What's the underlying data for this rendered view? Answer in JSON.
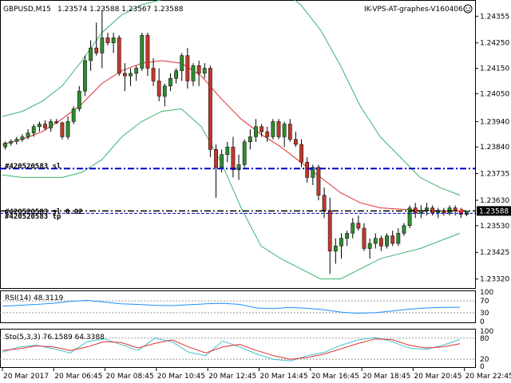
{
  "header": {
    "symbol": "GBPUSD,M15",
    "ohlc": "1.23574 1.23588 1.23567 1.23588",
    "expert": "IK-VPS-AT-graphes-V160406"
  },
  "price_axis": {
    "ticks": [
      "1.24355",
      "1.24250",
      "1.24150",
      "1.24050",
      "1.23940",
      "1.23840",
      "1.23735",
      "1.23630",
      "1.23530",
      "1.23425",
      "1.23320"
    ],
    "last_price": "1.23588"
  },
  "levels": {
    "blue_label": "#420520583 sl",
    "black_label": "#420520583 tp",
    "black_label_extra": "#420520583 sl 0.02"
  },
  "rsi": {
    "label": "RSI(14) 48.3119",
    "ticks": [
      "100",
      "70",
      "30",
      "0"
    ]
  },
  "sto": {
    "label": "Sto(5,3,3) 76.1589 64.3388",
    "ticks": [
      "100",
      "80",
      "20",
      "0"
    ]
  },
  "time_axis": [
    "20 Mar 2017",
    "20 Mar 06:45",
    "20 Mar 08:45",
    "20 Mar 10:45",
    "20 Mar 12:45",
    "20 Mar 14:45",
    "20 Mar 16:45",
    "20 Mar 18:45",
    "20 Mar 20:45",
    "20 Mar 22:45"
  ],
  "colors": {
    "bull": "#2e8b2e",
    "bear": "#c0392b",
    "band": "#3cb371",
    "ma": "#e03030",
    "blue_level": "#0000c8",
    "rsi_line": "#1e90ff",
    "sto_main": "#40c0d0",
    "sto_signal": "#e03030"
  },
  "chart_data": {
    "type": "candlestick",
    "candles": [
      [
        1.2384,
        1.23862,
        1.2383,
        1.23855
      ],
      [
        1.23855,
        1.2387,
        1.23845,
        1.23862
      ],
      [
        1.23862,
        1.2388,
        1.2385,
        1.2387
      ],
      [
        1.2387,
        1.2389,
        1.2386,
        1.2388
      ],
      [
        1.2388,
        1.2391,
        1.2387,
        1.23895
      ],
      [
        1.23895,
        1.2393,
        1.2388,
        1.2392
      ],
      [
        1.2392,
        1.2394,
        1.239,
        1.2393
      ],
      [
        1.2393,
        1.23945,
        1.23905,
        1.23915
      ],
      [
        1.23915,
        1.2395,
        1.239,
        1.2394
      ],
      [
        1.2394,
        1.2395,
        1.2393,
        1.23935
      ],
      [
        1.23935,
        1.2394,
        1.2387,
        1.2388
      ],
      [
        1.2388,
        1.2396,
        1.2387,
        1.2394
      ],
      [
        1.2394,
        1.24,
        1.2393,
        1.2399
      ],
      [
        1.2399,
        1.2408,
        1.2398,
        1.2406
      ],
      [
        1.2406,
        1.242,
        1.2404,
        1.2418
      ],
      [
        1.2418,
        1.2426,
        1.2414,
        1.2423
      ],
      [
        1.2423,
        1.2433,
        1.242,
        1.2421
      ],
      [
        1.2421,
        1.2438,
        1.2415,
        1.2427
      ],
      [
        1.2427,
        1.2429,
        1.2424,
        1.2425
      ],
      [
        1.2425,
        1.2429,
        1.2421,
        1.2427
      ],
      [
        1.2427,
        1.2428,
        1.2412,
        1.2413
      ],
      [
        1.2413,
        1.2417,
        1.2406,
        1.2412
      ],
      [
        1.2412,
        1.2415,
        1.2408,
        1.2413
      ],
      [
        1.2413,
        1.2416,
        1.241,
        1.2415
      ],
      [
        1.2415,
        1.2429,
        1.2414,
        1.2428
      ],
      [
        1.2428,
        1.2429,
        1.2412,
        1.2415
      ],
      [
        1.2415,
        1.2419,
        1.2408,
        1.241
      ],
      [
        1.241,
        1.2415,
        1.2402,
        1.2404
      ],
      [
        1.2404,
        1.2409,
        1.24,
        1.2408
      ],
      [
        1.2408,
        1.2413,
        1.2406,
        1.2411
      ],
      [
        1.2411,
        1.2415,
        1.2409,
        1.2414
      ],
      [
        1.2414,
        1.2421,
        1.241,
        1.242
      ],
      [
        1.242,
        1.2423,
        1.2407,
        1.241
      ],
      [
        1.241,
        1.2417,
        1.2408,
        1.2416
      ],
      [
        1.2416,
        1.2418,
        1.2408,
        1.2413
      ],
      [
        1.2413,
        1.2417,
        1.2411,
        1.2415
      ],
      [
        1.2415,
        1.2416,
        1.238,
        1.2383
      ],
      [
        1.2383,
        1.2385,
        1.2364,
        1.2376
      ],
      [
        1.2376,
        1.2383,
        1.2374,
        1.2381
      ],
      [
        1.2381,
        1.2386,
        1.2378,
        1.2384
      ],
      [
        1.2384,
        1.2388,
        1.2372,
        1.2375
      ],
      [
        1.2375,
        1.2381,
        1.2371,
        1.2377
      ],
      [
        1.2377,
        1.2387,
        1.2376,
        1.2386
      ],
      [
        1.2386,
        1.2391,
        1.2383,
        1.2388
      ],
      [
        1.2388,
        1.2395,
        1.2386,
        1.2392
      ],
      [
        1.2392,
        1.2393,
        1.2388,
        1.239
      ],
      [
        1.239,
        1.2392,
        1.2386,
        1.2388
      ],
      [
        1.2388,
        1.2395,
        1.2387,
        1.2394
      ],
      [
        1.2394,
        1.2395,
        1.2387,
        1.2388
      ],
      [
        1.2388,
        1.2394,
        1.2384,
        1.2393
      ],
      [
        1.2393,
        1.2395,
        1.2386,
        1.2387
      ],
      [
        1.2387,
        1.239,
        1.2384,
        1.2385
      ],
      [
        1.2385,
        1.2387,
        1.2376,
        1.2378
      ],
      [
        1.2378,
        1.238,
        1.237,
        1.2372
      ],
      [
        1.2372,
        1.2377,
        1.2369,
        1.2376
      ],
      [
        1.2376,
        1.2377,
        1.2363,
        1.2365
      ],
      [
        1.2365,
        1.2368,
        1.2356,
        1.2359
      ],
      [
        1.2359,
        1.2364,
        1.2334,
        1.2343
      ],
      [
        1.2343,
        1.2348,
        1.2338,
        1.2345
      ],
      [
        1.2345,
        1.235,
        1.234,
        1.2348
      ],
      [
        1.2348,
        1.2351,
        1.2345,
        1.235
      ],
      [
        1.235,
        1.2356,
        1.2348,
        1.2354
      ],
      [
        1.2354,
        1.2357,
        1.2351,
        1.2352
      ],
      [
        1.2352,
        1.2354,
        1.2343,
        1.2344
      ],
      [
        1.2344,
        1.2348,
        1.234,
        1.2346
      ],
      [
        1.2346,
        1.235,
        1.2344,
        1.2348
      ],
      [
        1.2348,
        1.2349,
        1.2343,
        1.2345
      ],
      [
        1.2345,
        1.235,
        1.2344,
        1.2349
      ],
      [
        1.2349,
        1.2351,
        1.2345,
        1.2346
      ],
      [
        1.2346,
        1.2352,
        1.2345,
        1.235
      ],
      [
        1.235,
        1.2354,
        1.2349,
        1.2353
      ],
      [
        1.2353,
        1.2361,
        1.2352,
        1.236
      ],
      [
        1.236,
        1.2362,
        1.2356,
        1.2358
      ],
      [
        1.2358,
        1.2361,
        1.2356,
        1.2359
      ],
      [
        1.2359,
        1.2362,
        1.2357,
        1.236
      ],
      [
        1.236,
        1.2361,
        1.2357,
        1.2358
      ],
      [
        1.2358,
        1.236,
        1.2356,
        1.2359
      ],
      [
        1.2359,
        1.236,
        1.2357,
        1.2358
      ],
      [
        1.2358,
        1.2361,
        1.2357,
        1.236
      ],
      [
        1.236,
        1.2361,
        1.2357,
        1.2359
      ],
      [
        1.2359,
        1.236,
        1.2356,
        1.23574
      ],
      [
        1.23574,
        1.23588,
        1.23567,
        1.23588
      ]
    ],
    "bands_upper": [
      1.2396,
      1.2398,
      1.2402,
      1.2408,
      1.2418,
      1.2429,
      1.2436,
      1.244,
      1.2442,
      1.2442,
      1.2442,
      1.2444,
      1.2447,
      1.2449,
      1.2446,
      1.244,
      1.243,
      1.2416,
      1.24,
      1.2388,
      1.238,
      1.2372,
      1.2368,
      1.2365
    ],
    "bands_mid": [
      1.2384,
      1.2385,
      1.2387,
      1.239,
      1.2396,
      1.2404,
      1.2412,
      1.2417,
      1.242,
      1.242,
      1.2417,
      1.241,
      1.2403,
      1.2397,
      1.2393,
      1.2388,
      1.2382,
      1.2376,
      1.237,
      1.2364,
      1.2361,
      1.2359,
      1.2358,
      1.2358
    ],
    "bands_lower": [
      1.2373,
      1.2372,
      1.2372,
      1.2372,
      1.2374,
      1.2379,
      1.2388,
      1.2394,
      1.2398,
      1.2399,
      1.2392,
      1.2378,
      1.236,
      1.2345,
      1.234,
      1.2336,
      1.2332,
      1.2332,
      1.2336,
      1.234,
      1.2342,
      1.2344,
      1.2347,
      1.235
    ],
    "ma": [
      1.2385,
      1.2387,
      1.239,
      1.2395,
      1.2401,
      1.2409,
      1.2414,
      1.2417,
      1.2418,
      1.2417,
      1.2412,
      1.2403,
      1.2395,
      1.2389,
      1.2384,
      1.2378,
      1.2372,
      1.2366,
      1.2362,
      1.236,
      1.23595,
      1.2359,
      1.23588,
      1.23588
    ],
    "levels": {
      "blue": 1.23755,
      "black": 1.23588
    },
    "ylim": [
      1.233,
      1.244
    ],
    "rsi_values": [
      52,
      55,
      58,
      62,
      68,
      72,
      66,
      60,
      58,
      55,
      54,
      57,
      60,
      62,
      58,
      46,
      44,
      48,
      45,
      40,
      32,
      28,
      30,
      36,
      42,
      46,
      48,
      48.3
    ],
    "rsi_ylim": [
      0,
      100
    ],
    "sto_main": [
      40,
      55,
      60,
      50,
      38,
      70,
      78,
      62,
      45,
      80,
      70,
      40,
      30,
      72,
      55,
      35,
      20,
      15,
      30,
      40,
      60,
      75,
      82,
      70,
      52,
      48,
      60,
      76.2
    ],
    "sto_signal": [
      45,
      50,
      58,
      55,
      45,
      55,
      70,
      68,
      52,
      65,
      75,
      55,
      38,
      55,
      62,
      45,
      30,
      20,
      25,
      35,
      50,
      65,
      78,
      76,
      60,
      52,
      55,
      64.3
    ],
    "sto_ylim": [
      0,
      100
    ]
  }
}
